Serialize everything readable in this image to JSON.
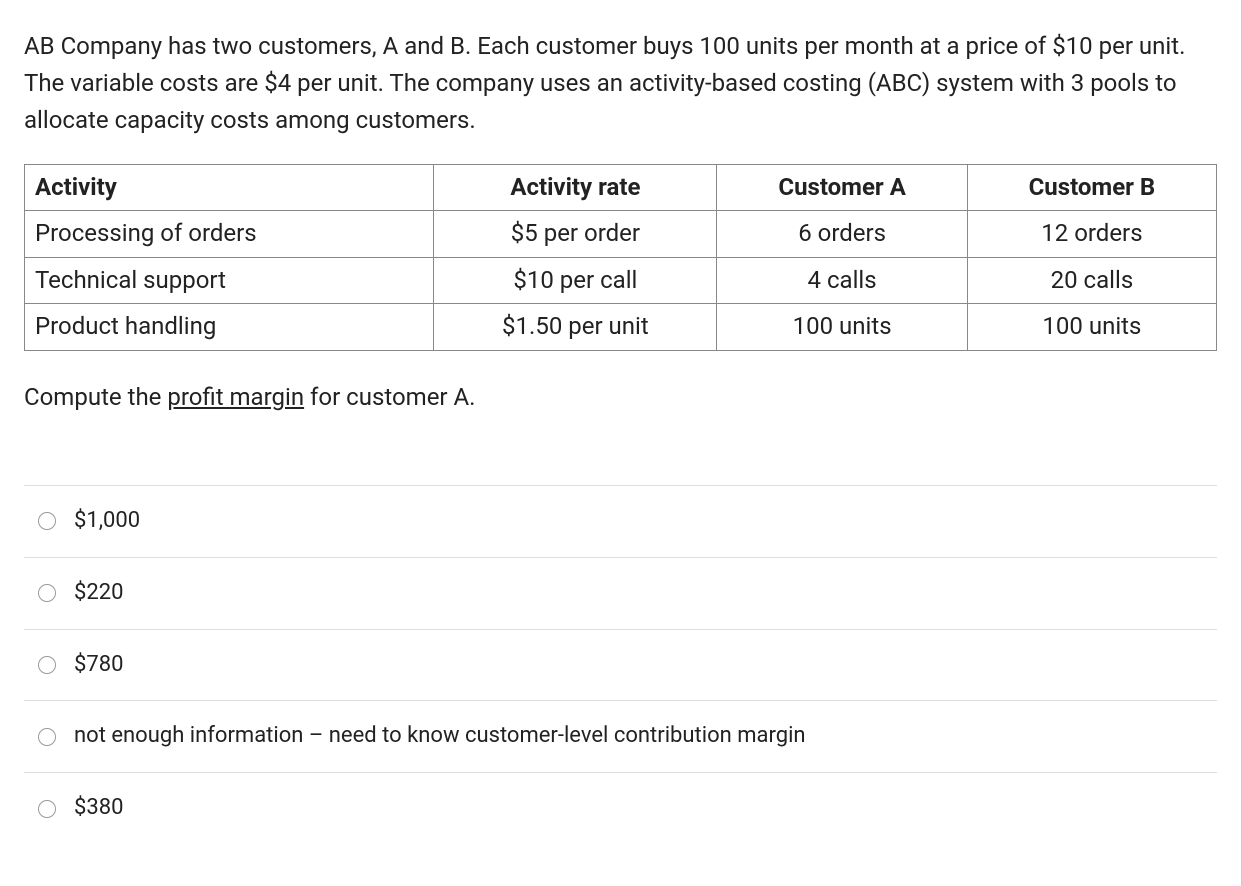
{
  "question": {
    "text": "AB Company has two customers, A and B. Each customer buys 100 units per month at a price of $10 per unit. The variable costs are $4 per unit. The company uses an activity-based costing (ABC) system with 3 pools to allocate capacity costs among customers."
  },
  "table": {
    "headers": [
      "Activity",
      "Activity rate",
      "Customer A",
      "Customer B"
    ],
    "rows": [
      [
        "Processing of orders",
        "$5 per order",
        "6 orders",
        "12 orders"
      ],
      [
        "Technical support",
        "$10 per call",
        "4 calls",
        "20 calls"
      ],
      [
        "Product handling",
        "$1.50 per unit",
        "100 units",
        "100 units"
      ]
    ]
  },
  "prompt": {
    "before": "Compute the ",
    "underlined": "profit margin",
    "after": " for customer A."
  },
  "options": [
    {
      "label": "$1,000"
    },
    {
      "label": "$220"
    },
    {
      "label": "$780"
    },
    {
      "label": "not enough information – need to know customer-level contribution margin"
    },
    {
      "label": "$380"
    }
  ],
  "styling": {
    "body_bg": "#ffffff",
    "text_color": "#222222",
    "border_color": "#888888",
    "divider_color": "#dddddd",
    "radio_border": "#9a9a9a",
    "question_fontsize": 24,
    "table_fontsize": 24,
    "option_fontsize": 22
  }
}
